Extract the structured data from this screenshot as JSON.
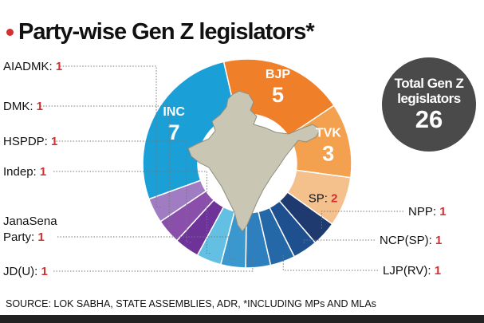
{
  "title": "Party-wise Gen Z legislators*",
  "source": "SOURCE: LOK SABHA, STATE ASSEMBLIES, ADR, *INCLUDING MPs AND MLAs",
  "total": {
    "label": "Total Gen Z legislators",
    "value": "26"
  },
  "colors": {
    "accent": "#d32f2f",
    "total_bg": "#4a4a4a",
    "map": "#c9c7b4"
  },
  "chart_data": {
    "type": "pie",
    "variant": "donut",
    "title": "Party-wise Gen Z legislators*",
    "total": 26,
    "slices": [
      {
        "label": "BJP",
        "value": 5,
        "color": "#f07f2a",
        "label_style": "inside"
      },
      {
        "label": "TVK",
        "value": 3,
        "color": "#f3a14f",
        "label_style": "inside"
      },
      {
        "label": "SP",
        "value": 2,
        "color": "#f4c08c",
        "label_style": "inside-dark"
      },
      {
        "label": "NPP",
        "value": 1,
        "color": "#1f3a6e",
        "label_style": "callout"
      },
      {
        "label": "NCP(SP)",
        "value": 1,
        "color": "#1e4f8e",
        "label_style": "callout"
      },
      {
        "label": "LJP(RV)",
        "value": 1,
        "color": "#2468a8",
        "label_style": "callout"
      },
      {
        "label": "JD(U)",
        "value": 1,
        "color": "#2d7fbd",
        "label_style": "callout"
      },
      {
        "label": "JanaSena Party",
        "value": 1,
        "color": "#3a98cf",
        "label_style": "callout"
      },
      {
        "label": "Indep",
        "value": 1,
        "color": "#63c0e2",
        "label_style": "callout"
      },
      {
        "label": "HSPDP",
        "value": 1,
        "color": "#6e3398",
        "label_style": "callout"
      },
      {
        "label": "DMK",
        "value": 1,
        "color": "#8a4faa",
        "label_style": "callout"
      },
      {
        "label": "AIADMK",
        "value": 1,
        "color": "#a07cc2",
        "label_style": "callout"
      },
      {
        "label": "INC",
        "value": 7,
        "color": "#1a9fd6",
        "label_style": "inside"
      }
    ]
  }
}
